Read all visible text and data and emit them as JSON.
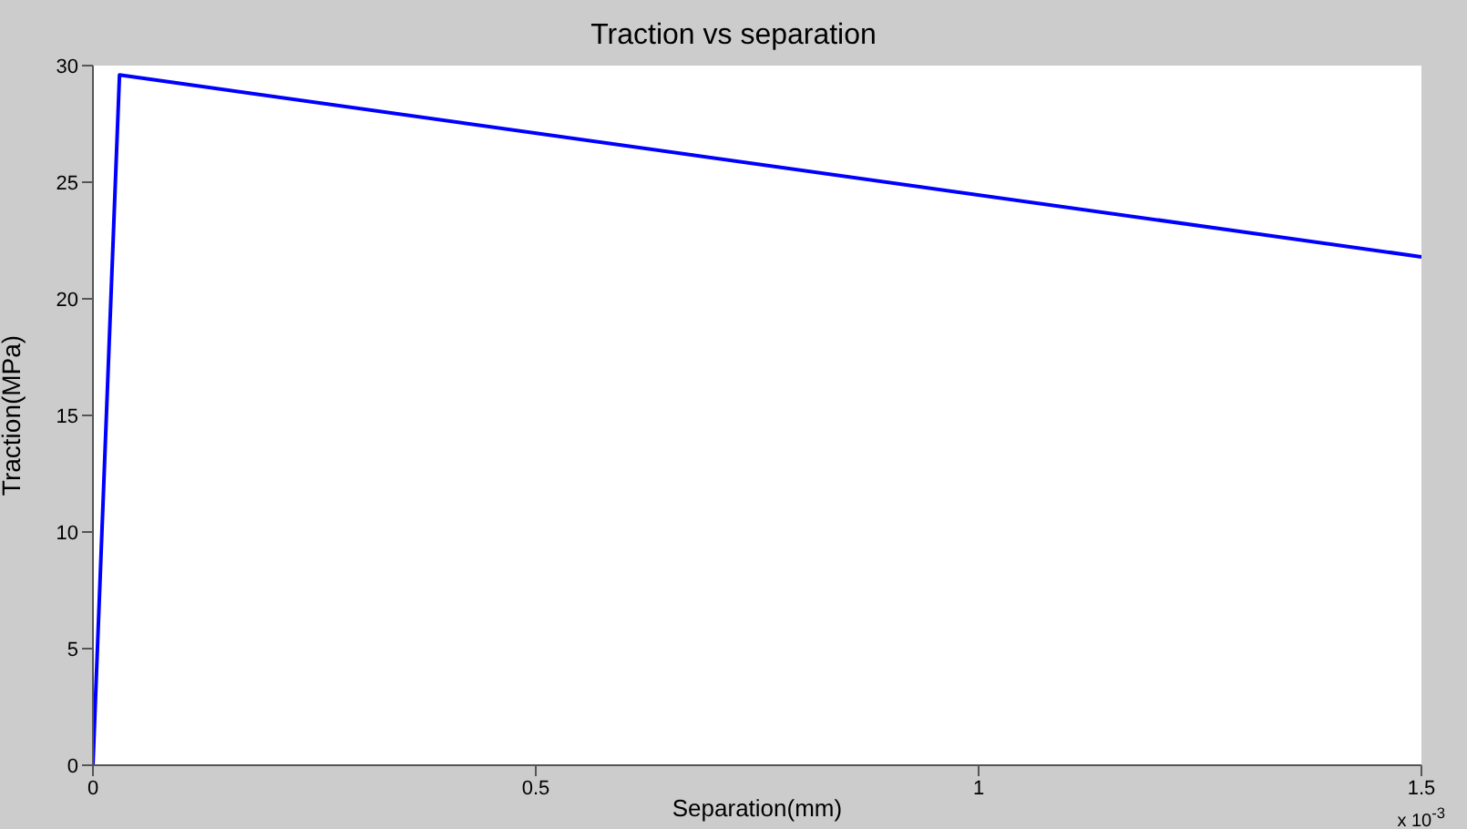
{
  "chart_data": {
    "type": "line",
    "title": "Traction vs separation",
    "xlabel": "Separation(mm)",
    "ylabel": "Traction(MPa)",
    "x": [
      0,
      0.03,
      1.5
    ],
    "series": [
      {
        "color": "#0000ff",
        "values": [
          0,
          29.6,
          21.8
        ]
      }
    ],
    "xlim": [
      0,
      1.5
    ],
    "xticks": [
      0,
      0.5,
      1,
      1.5
    ],
    "ylim": [
      0,
      30
    ],
    "yticks": [
      0,
      5,
      10,
      15,
      20,
      25,
      30
    ],
    "marker": "none",
    "line_style": "solid",
    "annotations": [
      "x 10$^{-3}$"
    ]
  }
}
